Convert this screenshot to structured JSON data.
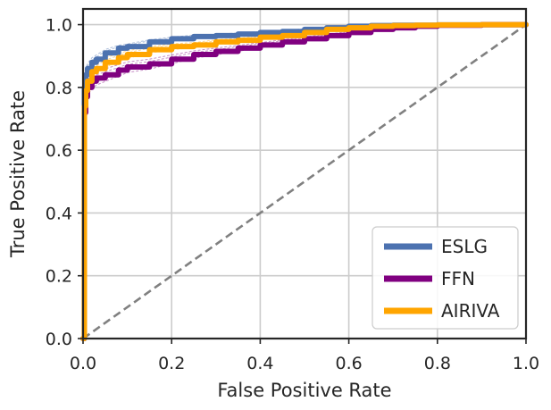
{
  "chart_data": {
    "type": "line",
    "title": "",
    "xlabel": "False Positive Rate",
    "ylabel": "True Positive Rate",
    "xlim": [
      0.0,
      1.0
    ],
    "ylim": [
      0.0,
      1.05
    ],
    "xticks": [
      "0.0",
      "0.2",
      "0.4",
      "0.6",
      "0.8",
      "1.0"
    ],
    "yticks": [
      "0.0",
      "0.2",
      "0.4",
      "0.6",
      "0.8",
      "1.0"
    ],
    "grid": true,
    "legend_position": "lower-right",
    "series": [
      {
        "name": "ESLG",
        "color": "#4c72b0",
        "fpr": [
          0.0,
          0.003,
          0.006,
          0.01,
          0.02,
          0.03,
          0.05,
          0.08,
          0.1,
          0.15,
          0.2,
          0.25,
          0.3,
          0.35,
          0.4,
          0.45,
          0.5,
          0.55,
          0.6,
          0.65,
          0.7,
          0.75,
          0.8,
          0.9,
          1.0
        ],
        "tpr": [
          0.0,
          0.8,
          0.84,
          0.86,
          0.88,
          0.89,
          0.91,
          0.925,
          0.93,
          0.945,
          0.955,
          0.962,
          0.965,
          0.97,
          0.975,
          0.978,
          0.985,
          0.99,
          0.995,
          0.997,
          0.998,
          0.998,
          0.999,
          1.0,
          1.0
        ]
      },
      {
        "name": "FFN",
        "color": "#800080",
        "fpr": [
          0.0,
          0.003,
          0.006,
          0.01,
          0.02,
          0.03,
          0.05,
          0.08,
          0.1,
          0.15,
          0.2,
          0.25,
          0.3,
          0.35,
          0.4,
          0.45,
          0.5,
          0.55,
          0.6,
          0.65,
          0.7,
          0.75,
          0.8,
          0.9,
          1.0
        ],
        "tpr": [
          0.0,
          0.72,
          0.77,
          0.8,
          0.82,
          0.83,
          0.84,
          0.855,
          0.865,
          0.875,
          0.89,
          0.905,
          0.915,
          0.925,
          0.935,
          0.945,
          0.955,
          0.965,
          0.975,
          0.985,
          0.99,
          0.995,
          0.998,
          1.0,
          1.0
        ]
      },
      {
        "name": "AIRIVA",
        "color": "#ffa500",
        "fpr": [
          0.0,
          0.003,
          0.006,
          0.01,
          0.02,
          0.03,
          0.05,
          0.08,
          0.1,
          0.15,
          0.2,
          0.25,
          0.3,
          0.35,
          0.4,
          0.45,
          0.5,
          0.55,
          0.6,
          0.65,
          0.7,
          0.75,
          0.8,
          0.9,
          1.0
        ],
        "tpr": [
          0.0,
          0.74,
          0.79,
          0.82,
          0.85,
          0.86,
          0.88,
          0.895,
          0.905,
          0.92,
          0.93,
          0.935,
          0.945,
          0.95,
          0.96,
          0.965,
          0.975,
          0.985,
          0.99,
          0.995,
          0.997,
          0.998,
          0.999,
          1.0,
          1.0
        ]
      }
    ],
    "reference_line": {
      "name": "chance",
      "x": [
        0.0,
        1.0
      ],
      "y": [
        0.0,
        1.0
      ],
      "color": "#808080",
      "style": "dashed"
    }
  }
}
